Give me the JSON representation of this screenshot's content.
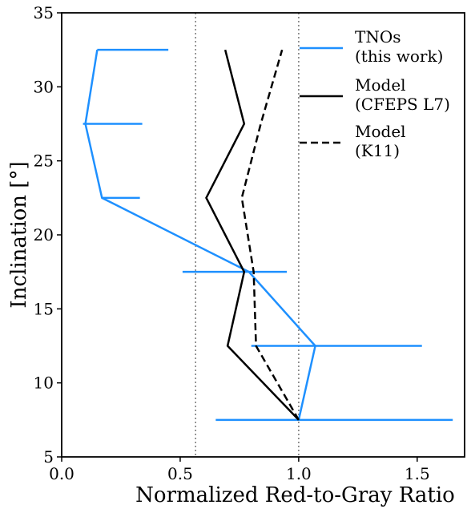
{
  "chart_data": {
    "type": "line",
    "xlabel": "Normalized Red-to-Gray Ratio",
    "ylabel": "Inclination [°]",
    "xlim": [
      0.0,
      1.7
    ],
    "ylim": [
      5,
      35
    ],
    "x_ticks": [
      0.0,
      0.5,
      1.0,
      1.5
    ],
    "x_tick_labels": [
      "0.0",
      "0.5",
      "1.0",
      "1.5"
    ],
    "y_ticks": [
      5,
      10,
      15,
      20,
      25,
      30,
      35
    ],
    "y_tick_labels": [
      "5",
      "10",
      "15",
      "20",
      "25",
      "30",
      "35"
    ],
    "reference_lines_x": [
      0.565,
      1.0
    ],
    "legend_placement": "top-right",
    "series": [
      {
        "name": "TNOs\n(this work)",
        "color": "#1e90ff",
        "style": "solid",
        "x": [
          1.0,
          1.07,
          0.79,
          0.17,
          0.1,
          0.15
        ],
        "y": [
          7.5,
          12.5,
          17.5,
          22.5,
          27.5,
          32.5
        ],
        "xerr_range": [
          [
            0.65,
            1.65
          ],
          [
            0.8,
            1.52
          ],
          [
            0.51,
            0.95
          ],
          [
            0.17,
            0.33
          ],
          [
            0.09,
            0.34
          ],
          [
            0.15,
            0.45
          ]
        ]
      },
      {
        "name": "Model\n(CFEPS L7)",
        "color": "#000000",
        "style": "solid",
        "x": [
          1.0,
          0.7,
          0.77,
          0.61,
          0.77,
          0.69
        ],
        "y": [
          7.5,
          12.5,
          17.5,
          22.5,
          27.5,
          32.5
        ]
      },
      {
        "name": "Model\n(K11)",
        "color": "#000000",
        "style": "dashed",
        "x": [
          1.0,
          0.82,
          0.81,
          0.76,
          0.84,
          0.93
        ],
        "y": [
          7.5,
          12.5,
          17.5,
          22.5,
          27.5,
          32.5
        ]
      }
    ]
  }
}
